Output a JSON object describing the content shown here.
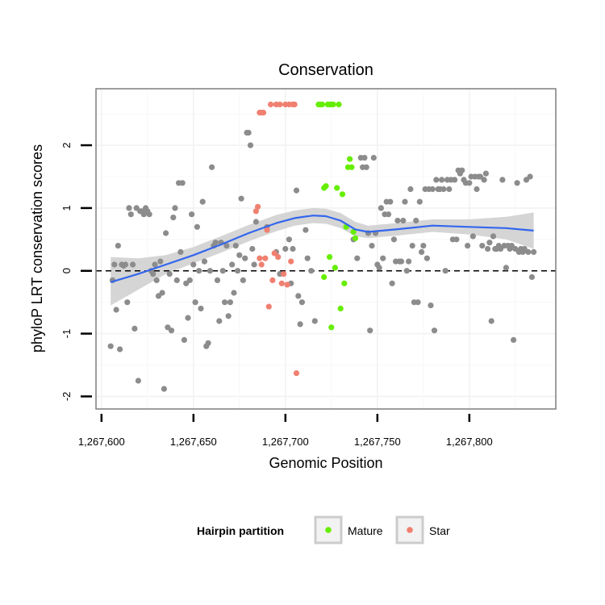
{
  "colors": {
    "panel_border": "#7f7f7f",
    "grid_major": "#f2f2f2",
    "grid_minor": "#f8f8f8",
    "other_point": "#8c8c8c",
    "mature_point": "#66ee00",
    "star_point": "#f08070",
    "smooth_line": "#3366ee",
    "ribbon": "#d3d3d3",
    "zero_line": "#000000"
  },
  "chart_data": {
    "type": "scatter",
    "title": "Conservation",
    "xlabel": "Genomic Position",
    "ylabel": "phyloP LRT conservation scores",
    "xlim": [
      1267597,
      1267847
    ],
    "ylim": [
      -2.2,
      2.9
    ],
    "x_ticks": [
      1267600,
      1267650,
      1267700,
      1267750,
      1267800
    ],
    "x_tick_labels": [
      "1,267,600",
      "1,267,650",
      "1,267,700",
      "1,267,750",
      "1,267,800"
    ],
    "y_ticks": [
      -2,
      -1,
      0,
      1,
      2
    ],
    "y_tick_labels": [
      "-2",
      "-1",
      "0",
      "1",
      "2"
    ],
    "reference_line": {
      "y": 0,
      "style": "dashed"
    },
    "legend": {
      "title": "Hairpin partition",
      "position": "bottom",
      "entries": [
        "Mature",
        "Star"
      ]
    },
    "series": [
      {
        "name": "Other",
        "color": "#8c8c8c",
        "points": [
          [
            1267605,
            -1.2
          ],
          [
            1267606,
            -0.15
          ],
          [
            1267607,
            0.1
          ],
          [
            1267608,
            -0.62
          ],
          [
            1267609,
            0.4
          ],
          [
            1267610,
            -1.25
          ],
          [
            1267611,
            0.1
          ],
          [
            1267612,
            0.08
          ],
          [
            1267613,
            0.1
          ],
          [
            1267614,
            -0.5
          ],
          [
            1267615,
            1.0
          ],
          [
            1267616,
            0.9
          ],
          [
            1267617,
            0.1
          ],
          [
            1267618,
            -0.92
          ],
          [
            1267619,
            1.0
          ],
          [
            1267620,
            -1.75
          ],
          [
            1267621,
            0.95
          ],
          [
            1267622,
            0.95
          ],
          [
            1267623,
            0.9
          ],
          [
            1267624,
            1.0
          ],
          [
            1267625,
            0.95
          ],
          [
            1267626,
            0.9
          ],
          [
            1267627,
            0.0
          ],
          [
            1267628,
            -0.05
          ],
          [
            1267629,
            0.1
          ],
          [
            1267630,
            -0.15
          ],
          [
            1267631,
            -0.4
          ],
          [
            1267632,
            0.15
          ],
          [
            1267633,
            -0.35
          ],
          [
            1267634,
            -1.88
          ],
          [
            1267635,
            0.6
          ],
          [
            1267636,
            -0.9
          ],
          [
            1267637,
            -0.05
          ],
          [
            1267638,
            -0.95
          ],
          [
            1267639,
            0.85
          ],
          [
            1267640,
            1.0
          ],
          [
            1267641,
            -0.15
          ],
          [
            1267642,
            1.4
          ],
          [
            1267643,
            0.3
          ],
          [
            1267644,
            1.4
          ],
          [
            1267645,
            -1.1
          ],
          [
            1267646,
            -0.2
          ],
          [
            1267647,
            -0.75
          ],
          [
            1267648,
            -0.15
          ],
          [
            1267649,
            0.9
          ],
          [
            1267650,
            0.1
          ],
          [
            1267651,
            -0.5
          ],
          [
            1267652,
            0.7
          ],
          [
            1267653,
            0.0
          ],
          [
            1267654,
            -0.6
          ],
          [
            1267655,
            1.1
          ],
          [
            1267656,
            0.15
          ],
          [
            1267657,
            -1.2
          ],
          [
            1267658,
            -1.15
          ],
          [
            1267659,
            0.0
          ],
          [
            1267660,
            1.65
          ],
          [
            1267661,
            0.4
          ],
          [
            1267662,
            0.45
          ],
          [
            1267663,
            -0.15
          ],
          [
            1267664,
            -0.8
          ],
          [
            1267665,
            0.45
          ],
          [
            1267666,
            0.0
          ],
          [
            1267667,
            -0.5
          ],
          [
            1267668,
            0.4
          ],
          [
            1267669,
            -0.72
          ],
          [
            1267670,
            -0.5
          ],
          [
            1267671,
            0.1
          ],
          [
            1267672,
            -0.35
          ],
          [
            1267673,
            0.4
          ],
          [
            1267674,
            0.0
          ],
          [
            1267675,
            0.25
          ],
          [
            1267676,
            1.15
          ],
          [
            1267677,
            -0.15
          ],
          [
            1267678,
            0.2
          ],
          [
            1267679,
            2.2
          ],
          [
            1267680,
            2.2
          ],
          [
            1267681,
            2.0
          ],
          [
            1267682,
            0.35
          ],
          [
            1267683,
            0.1
          ],
          [
            1267684,
            0.78
          ],
          [
            1267690,
            0.7
          ],
          [
            1267695,
            0.3
          ],
          [
            1267697,
            -0.05
          ],
          [
            1267700,
            0.35
          ],
          [
            1267702,
            0.5
          ],
          [
            1267703,
            -0.2
          ],
          [
            1267704,
            0.35
          ],
          [
            1267706,
            1.28
          ],
          [
            1267707,
            -0.4
          ],
          [
            1267708,
            -0.85
          ],
          [
            1267709,
            -0.5
          ],
          [
            1267711,
            0.65
          ],
          [
            1267712,
            0.2
          ],
          [
            1267714,
            0.0
          ],
          [
            1267716,
            -0.8
          ],
          [
            1267737,
            0.5
          ],
          [
            1267739,
            0.2
          ],
          [
            1267741,
            1.8
          ],
          [
            1267742,
            1.65
          ],
          [
            1267743,
            1.8
          ],
          [
            1267744,
            1.65
          ],
          [
            1267745,
            0.6
          ],
          [
            1267746,
            -0.95
          ],
          [
            1267747,
            0.4
          ],
          [
            1267748,
            1.8
          ],
          [
            1267749,
            0.6
          ],
          [
            1267750,
            0.1
          ],
          [
            1267751,
            0.05
          ],
          [
            1267752,
            1.0
          ],
          [
            1267753,
            0.2
          ],
          [
            1267754,
            0.9
          ],
          [
            1267755,
            1.1
          ],
          [
            1267756,
            0.9
          ],
          [
            1267757,
            1.1
          ],
          [
            1267758,
            -0.2
          ],
          [
            1267759,
            0.5
          ],
          [
            1267760,
            0.15
          ],
          [
            1267761,
            0.8
          ],
          [
            1267762,
            0.15
          ],
          [
            1267763,
            0.15
          ],
          [
            1267764,
            0.8
          ],
          [
            1267765,
            1.1
          ],
          [
            1267766,
            0.0
          ],
          [
            1267767,
            0.15
          ],
          [
            1267768,
            1.3
          ],
          [
            1267769,
            0.4
          ],
          [
            1267770,
            -0.5
          ],
          [
            1267771,
            0.8
          ],
          [
            1267772,
            -0.5
          ],
          [
            1267773,
            1.1
          ],
          [
            1267774,
            0.3
          ],
          [
            1267775,
            0.4
          ],
          [
            1267776,
            1.3
          ],
          [
            1267777,
            0.2
          ],
          [
            1267778,
            1.3
          ],
          [
            1267779,
            -0.55
          ],
          [
            1267780,
            1.3
          ],
          [
            1267781,
            -0.95
          ],
          [
            1267782,
            1.45
          ],
          [
            1267783,
            1.3
          ],
          [
            1267784,
            1.3
          ],
          [
            1267785,
            1.45
          ],
          [
            1267786,
            1.3
          ],
          [
            1267787,
            0.0
          ],
          [
            1267788,
            1.45
          ],
          [
            1267789,
            1.3
          ],
          [
            1267790,
            1.45
          ],
          [
            1267791,
            0.5
          ],
          [
            1267792,
            1.45
          ],
          [
            1267793,
            0.5
          ],
          [
            1267794,
            1.6
          ],
          [
            1267795,
            1.55
          ],
          [
            1267796,
            1.6
          ],
          [
            1267797,
            1.45
          ],
          [
            1267798,
            1.4
          ],
          [
            1267799,
            0.4
          ],
          [
            1267800,
            1.4
          ],
          [
            1267801,
            1.5
          ],
          [
            1267802,
            0.55
          ],
          [
            1267803,
            1.5
          ],
          [
            1267804,
            1.3
          ],
          [
            1267805,
            1.5
          ],
          [
            1267806,
            1.5
          ],
          [
            1267807,
            0.4
          ],
          [
            1267808,
            1.45
          ],
          [
            1267809,
            1.55
          ],
          [
            1267810,
            0.35
          ],
          [
            1267811,
            0.45
          ],
          [
            1267812,
            -0.8
          ],
          [
            1267813,
            0.55
          ],
          [
            1267814,
            0.35
          ],
          [
            1267815,
            0.35
          ],
          [
            1267816,
            0.4
          ],
          [
            1267817,
            0.35
          ],
          [
            1267818,
            1.45
          ],
          [
            1267819,
            0.4
          ],
          [
            1267820,
            0.05
          ],
          [
            1267821,
            0.4
          ],
          [
            1267822,
            0.35
          ],
          [
            1267823,
            0.4
          ],
          [
            1267824,
            -1.1
          ],
          [
            1267825,
            0.35
          ],
          [
            1267826,
            1.4
          ],
          [
            1267827,
            0.3
          ],
          [
            1267828,
            0.35
          ],
          [
            1267829,
            0.3
          ],
          [
            1267830,
            0.35
          ],
          [
            1267831,
            1.45
          ],
          [
            1267832,
            0.3
          ],
          [
            1267833,
            1.5
          ],
          [
            1267834,
            -0.1
          ],
          [
            1267835,
            0.3
          ]
        ]
      },
      {
        "name": "Mature",
        "color": "#66ee00",
        "points": [
          [
            1267718,
            2.65
          ],
          [
            1267719,
            2.65
          ],
          [
            1267720,
            2.65
          ],
          [
            1267721,
            1.32
          ],
          [
            1267721,
            -0.1
          ],
          [
            1267722,
            1.35
          ],
          [
            1267723,
            2.65
          ],
          [
            1267724,
            2.65
          ],
          [
            1267724,
            0.22
          ],
          [
            1267725,
            2.65
          ],
          [
            1267725,
            -0.9
          ],
          [
            1267726,
            2.65
          ],
          [
            1267727,
            0.05
          ],
          [
            1267728,
            1.32
          ],
          [
            1267729,
            2.65
          ],
          [
            1267730,
            -0.6
          ],
          [
            1267731,
            1.22
          ],
          [
            1267732,
            -0.2
          ],
          [
            1267733,
            0.7
          ],
          [
            1267734,
            1.65
          ],
          [
            1267735,
            1.78
          ],
          [
            1267736,
            1.65
          ],
          [
            1267737,
            0.62
          ],
          [
            1267738,
            0.52
          ]
        ]
      },
      {
        "name": "Star",
        "color": "#f08070",
        "points": [
          [
            1267684,
            0.95
          ],
          [
            1267685,
            1.02
          ],
          [
            1267686,
            2.52
          ],
          [
            1267686,
            0.2
          ],
          [
            1267687,
            2.52
          ],
          [
            1267687,
            0.1
          ],
          [
            1267688,
            2.52
          ],
          [
            1267689,
            0.2
          ],
          [
            1267690,
            0.65
          ],
          [
            1267691,
            -0.57
          ],
          [
            1267692,
            2.65
          ],
          [
            1267693,
            -0.15
          ],
          [
            1267694,
            0.28
          ],
          [
            1267695,
            2.65
          ],
          [
            1267696,
            0.22
          ],
          [
            1267697,
            2.65
          ],
          [
            1267698,
            -0.2
          ],
          [
            1267699,
            -0.05
          ],
          [
            1267700,
            2.65
          ],
          [
            1267701,
            -0.22
          ],
          [
            1267702,
            2.65
          ],
          [
            1267703,
            0.15
          ],
          [
            1267704,
            2.65
          ],
          [
            1267705,
            2.65
          ],
          [
            1267706,
            -1.63
          ]
        ]
      }
    ],
    "smooth": {
      "name": "LOESS fit",
      "color": "#3366ee",
      "x": [
        1267605,
        1267620,
        1267635,
        1267650,
        1267665,
        1267680,
        1267695,
        1267705,
        1267715,
        1267722,
        1267730,
        1267738,
        1267745,
        1267760,
        1267780,
        1267800,
        1267820,
        1267835
      ],
      "y": [
        -0.18,
        -0.05,
        0.1,
        0.25,
        0.42,
        0.6,
        0.76,
        0.84,
        0.88,
        0.87,
        0.8,
        0.66,
        0.62,
        0.66,
        0.72,
        0.7,
        0.68,
        0.64
      ],
      "lower": [
        -0.55,
        -0.3,
        -0.05,
        0.12,
        0.29,
        0.47,
        0.63,
        0.72,
        0.76,
        0.75,
        0.68,
        0.55,
        0.52,
        0.56,
        0.62,
        0.58,
        0.5,
        0.35
      ],
      "upper": [
        0.22,
        0.2,
        0.25,
        0.38,
        0.55,
        0.73,
        0.89,
        0.96,
        1.0,
        0.99,
        0.92,
        0.78,
        0.72,
        0.76,
        0.82,
        0.82,
        0.86,
        0.93
      ]
    }
  }
}
